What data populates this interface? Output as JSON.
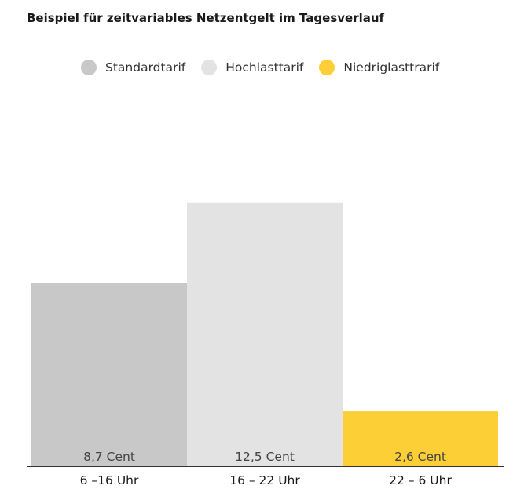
{
  "title": "Beispiel für zeitvariables Netzentgelt im Tagesverlauf",
  "legend": [
    {
      "label": "Standardtarif",
      "color": "#c8c8c8"
    },
    {
      "label": "Hochlasttarif",
      "color": "#e3e3e3"
    },
    {
      "label": "Niedriglasttrarif",
      "color": "#fbcf35"
    }
  ],
  "chart_data": {
    "type": "bar",
    "title": "Beispiel für zeitvariables Netzentgelt im Tagesverlauf",
    "categories": [
      "6 –16 Uhr",
      "16 – 22 Uhr",
      "22 – 6 Uhr"
    ],
    "values": [
      8.7,
      12.5,
      2.6
    ],
    "value_labels": [
      "8,7 Cent",
      "12,5 Cent",
      "2,6 Cent"
    ],
    "series_colors": [
      "#c8c8c8",
      "#e3e3e3",
      "#fbcf35"
    ],
    "unit": "Cent",
    "legend_position": "top",
    "grid": false,
    "ylim": [
      0,
      17.4
    ]
  }
}
